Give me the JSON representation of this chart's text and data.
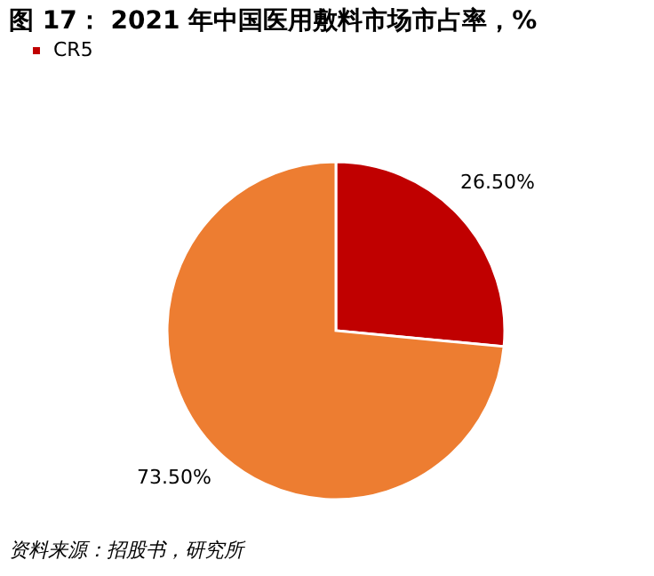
{
  "chart_data": {
    "type": "pie",
    "title": "图 17： 2021 年中国医用敷料市场市占率，%",
    "categories": [
      "CR5",
      null
    ],
    "values": [
      26.5,
      73.5
    ],
    "colors": [
      "#c00000",
      "#ed7d31"
    ],
    "value_labels": [
      "26.50%",
      "73.50%"
    ],
    "legend": "top",
    "annotations": [
      "资料来源：招股书，研究所"
    ]
  }
}
